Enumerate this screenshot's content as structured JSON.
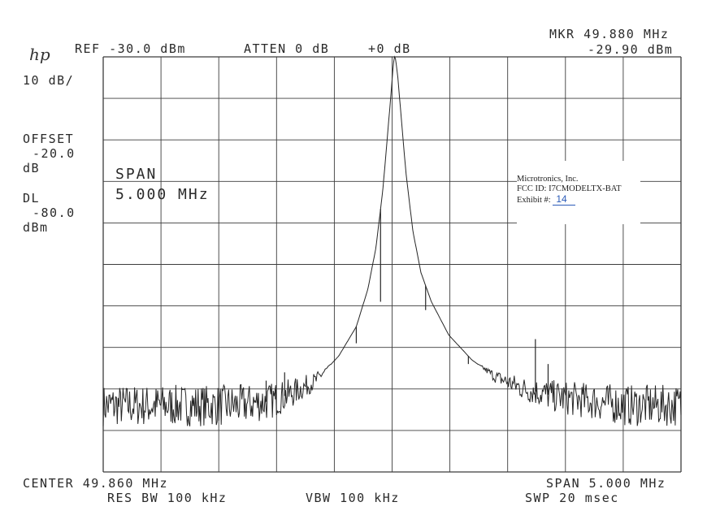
{
  "header": {
    "logo": "hp",
    "ref": "REF -30.0 dBm",
    "atten": "ATTEN 0 dB",
    "gain": "+0 dB",
    "marker_freq": "MKR 49.880 MHz",
    "marker_level": "-29.90 dBm"
  },
  "left_panel": {
    "scale": "10 dB/",
    "offset_label": "OFFSET",
    "offset_value": "-20.0",
    "offset_unit": "dB",
    "dl_label": "DL",
    "dl_value": "-80.0",
    "dl_unit": "dBm"
  },
  "overlay": {
    "span_label": "SPAN",
    "span_value": "5.000 MHz"
  },
  "stamp": {
    "company": "Microtronics, Inc.",
    "fcc": "FCC ID:  I7CMODELTX-BAT",
    "exhibit_label": "Exhibit #:",
    "exhibit_number": "14"
  },
  "footer": {
    "center": "CENTER 49.860 MHz",
    "span": "SPAN 5.000 MHz",
    "res_bw": "RES BW 100 kHz",
    "vbw": "VBW 100 kHz",
    "sweep": "SWP 20 msec"
  },
  "chart_data": {
    "type": "line",
    "x_unit": "MHz",
    "y_unit": "dBm",
    "xlim": [
      47.36,
      52.36
    ],
    "ylim": [
      -130,
      -30
    ],
    "grid": true,
    "x_divisions": 10,
    "y_divisions": 10,
    "series": [
      {
        "x": [
          47.36,
          47.6,
          47.9,
          48.2,
          48.5,
          48.8,
          49.0,
          49.2,
          49.4,
          49.55,
          49.65,
          49.72,
          49.78,
          49.82,
          49.85,
          49.87,
          49.88,
          49.89,
          49.91,
          49.94,
          49.98,
          50.04,
          50.11,
          50.2,
          50.35,
          50.55,
          50.75,
          51.0,
          51.3,
          51.6,
          51.9,
          52.1,
          52.36
        ],
        "y": [
          -114,
          -114,
          -114,
          -114,
          -114,
          -113,
          -111,
          -108,
          -102,
          -95,
          -86,
          -76,
          -62,
          -49,
          -39,
          -32,
          -29.9,
          -30.5,
          -35,
          -45,
          -58,
          -72,
          -82,
          -89,
          -97,
          -103,
          -107,
          -110,
          -112,
          -113,
          -114,
          -114,
          -114
        ]
      }
    ],
    "spurs": [
      {
        "x": 48.77,
        "y": -108
      },
      {
        "x": 48.85,
        "y": -110
      },
      {
        "x": 48.93,
        "y": -106
      },
      {
        "x": 49.55,
        "y": -99
      },
      {
        "x": 49.76,
        "y": -89
      },
      {
        "x": 50.15,
        "y": -91
      },
      {
        "x": 50.52,
        "y": -104
      },
      {
        "x": 51.1,
        "y": -98
      },
      {
        "x": 51.21,
        "y": -104
      }
    ]
  }
}
